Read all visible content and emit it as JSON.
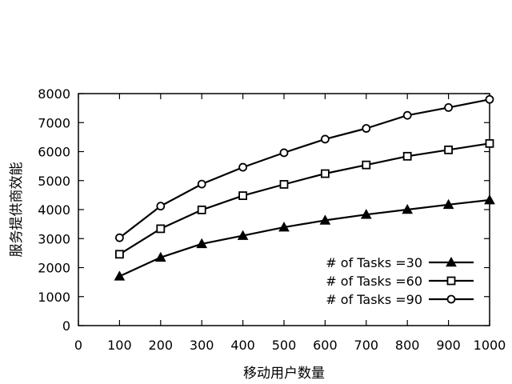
{
  "chart_data": {
    "type": "line",
    "xlabel": "移动用户数量",
    "ylabel": "服务提供商效能",
    "xlim": [
      0,
      1000
    ],
    "ylim": [
      0,
      8000
    ],
    "xticks": [
      0,
      100,
      200,
      300,
      400,
      500,
      600,
      700,
      800,
      900,
      1000
    ],
    "yticks": [
      0,
      1000,
      2000,
      3000,
      4000,
      5000,
      6000,
      7000,
      8000
    ],
    "grid": false,
    "legend_position": "bottom-right",
    "x": [
      100,
      200,
      300,
      400,
      500,
      600,
      700,
      800,
      900,
      1000
    ],
    "series": [
      {
        "name": "# of Tasks =30",
        "marker": "triangle",
        "values": [
          1700,
          2350,
          2820,
          3100,
          3390,
          3630,
          3830,
          4000,
          4170,
          4330
        ]
      },
      {
        "name": "# of Tasks =60",
        "marker": "square",
        "values": [
          2460,
          3340,
          3990,
          4480,
          4870,
          5240,
          5540,
          5840,
          6060,
          6280
        ]
      },
      {
        "name": "# of Tasks =90",
        "marker": "circle",
        "values": [
          3030,
          4120,
          4880,
          5460,
          5960,
          6430,
          6800,
          7250,
          7520,
          7800
        ]
      }
    ],
    "colors": {
      "line": "#000000"
    }
  }
}
